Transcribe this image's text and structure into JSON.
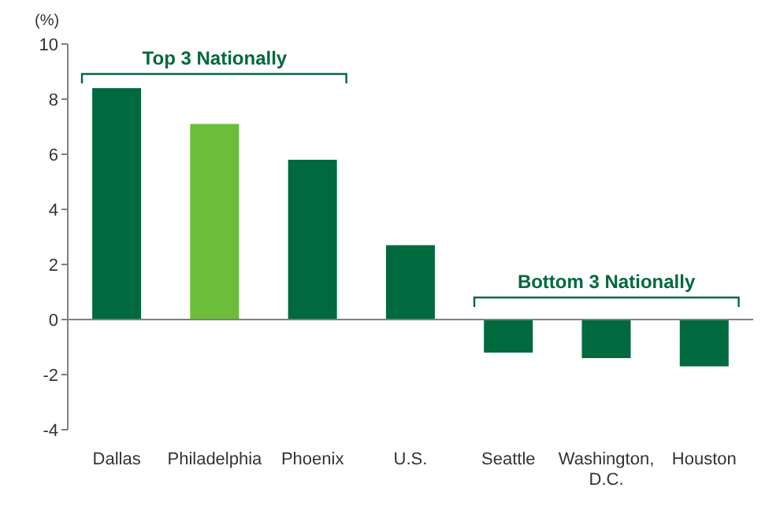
{
  "chart_data": {
    "type": "bar",
    "ylabel": "(%)",
    "categories": [
      "Dallas",
      "Philadelphia",
      "Phoenix",
      "U.S.",
      "Seattle",
      "Washington, D.C.",
      "Houston"
    ],
    "values": [
      8.4,
      7.1,
      5.8,
      2.7,
      -1.2,
      -1.4,
      -1.7
    ],
    "colors": [
      "#00693e",
      "#6cbd3a",
      "#00693e",
      "#00693e",
      "#00693e",
      "#00693e",
      "#00693e"
    ],
    "ylim": [
      -4,
      10
    ],
    "yticks": [
      -4,
      -2,
      0,
      2,
      4,
      6,
      8,
      10
    ],
    "grid": false,
    "legend": false,
    "ref_lines": [
      {
        "axis": "y",
        "value": 0,
        "color": "#808080"
      }
    ],
    "annotations": [
      "Top 3 Nationally",
      "Bottom 3 Nationally"
    ]
  }
}
